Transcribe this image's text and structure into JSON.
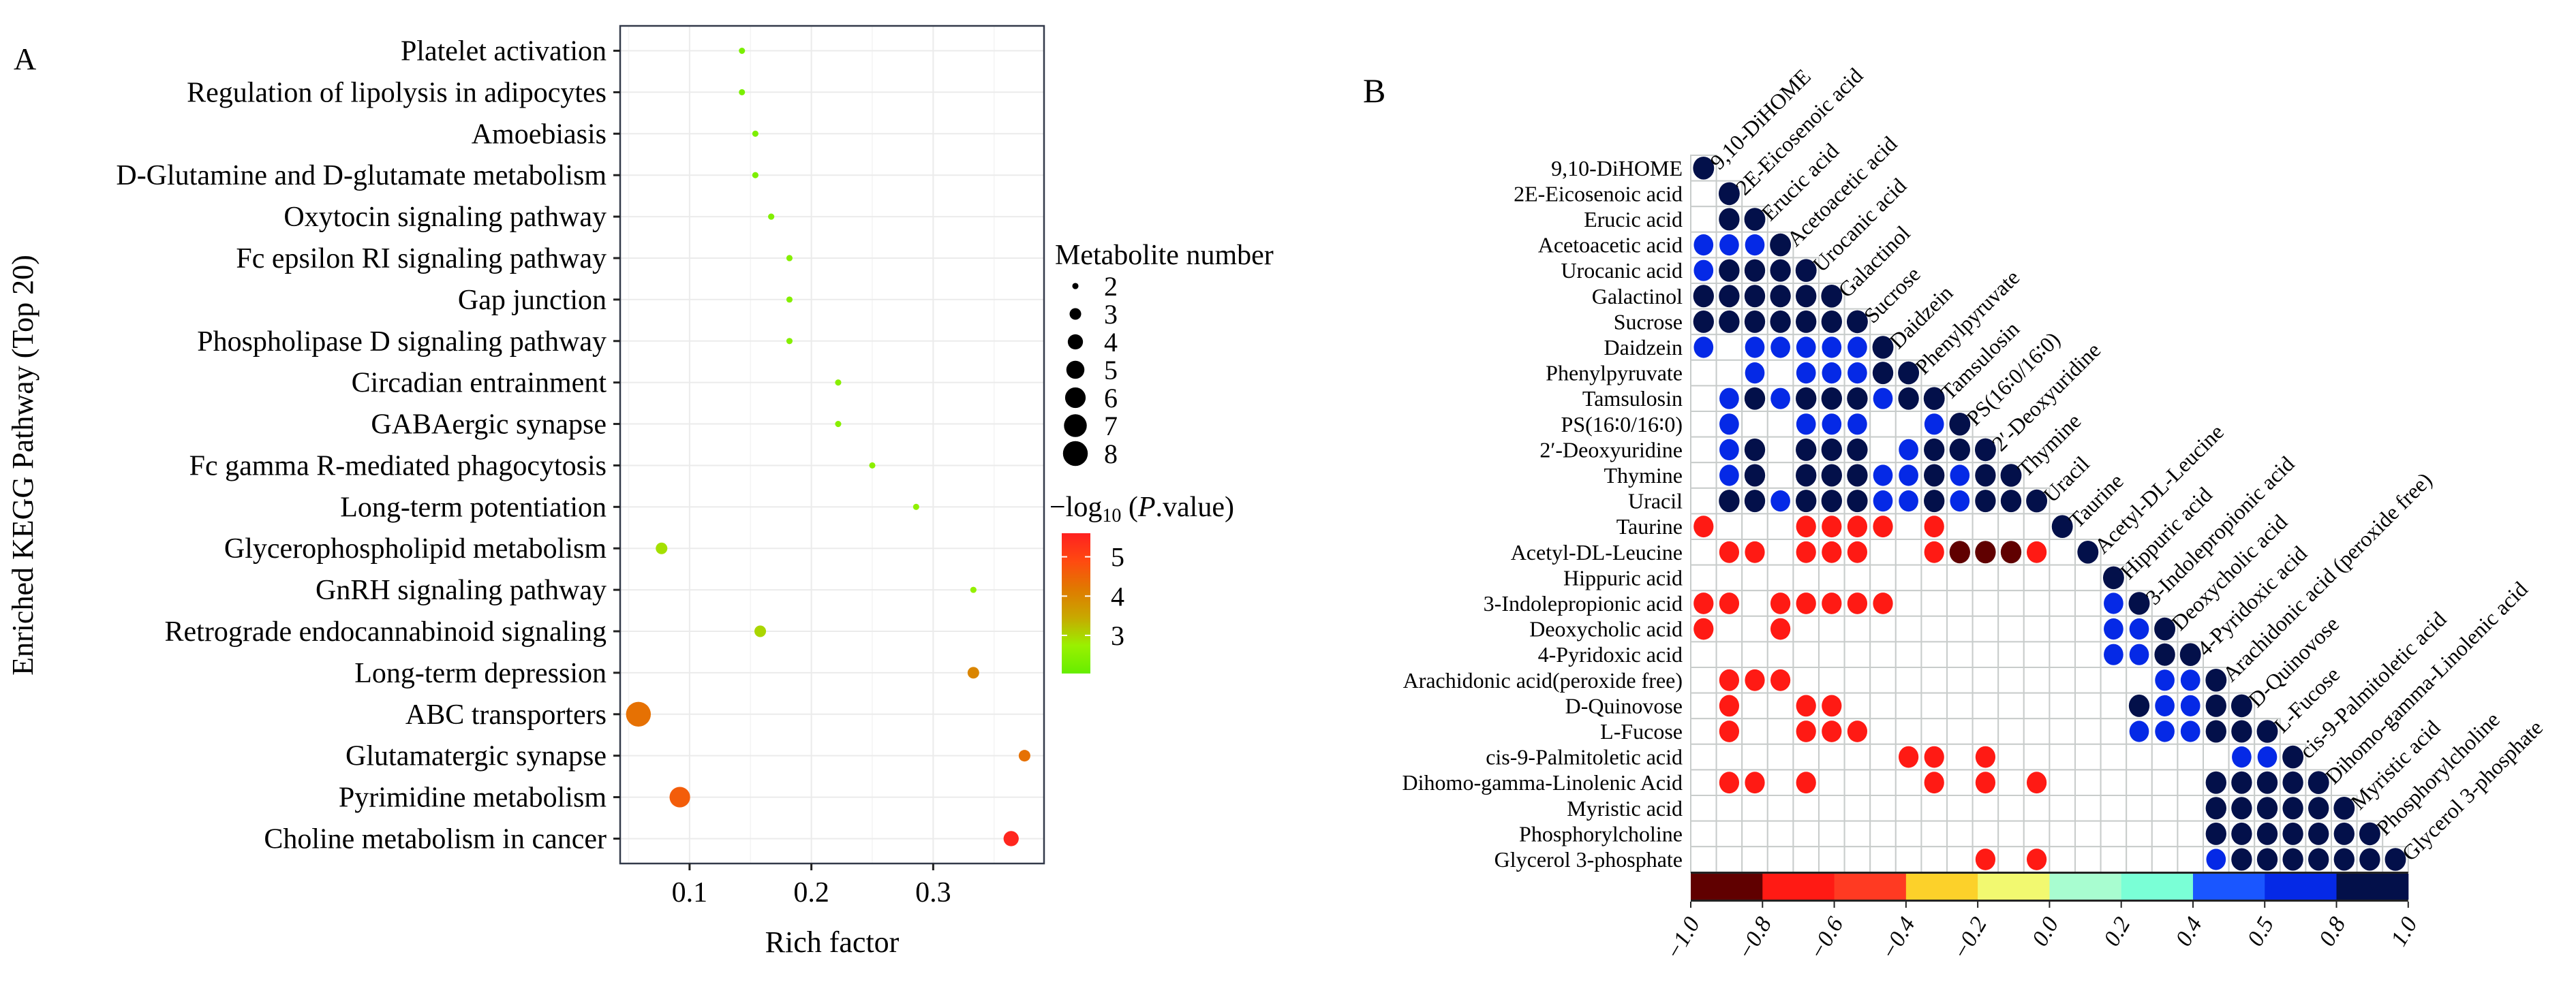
{
  "panel_labels": {
    "a": "A",
    "b": "B"
  },
  "chart_data": [
    {
      "type": "scatter",
      "title": "",
      "xlabel": "Rich factor",
      "ylabel": "Enriched KEGG Pathway (Top 20)",
      "xlim": [
        0.043,
        0.391
      ],
      "xticks": [
        0.1,
        0.2,
        0.3
      ],
      "xtick_labels": [
        "0.1",
        "0.2",
        "0.3"
      ],
      "grid": true,
      "categories": [
        "Platelet activation",
        "Regulation of lipolysis in adipocytes",
        "Amoebiasis",
        "D-Glutamine and D-glutamate metabolism",
        "Oxytocin signaling pathway",
        "Fc epsilon RI signaling pathway",
        "Gap junction",
        "Phospholipase D signaling pathway",
        "Circadian entrainment",
        "GABAergic synapse",
        "Fc gamma R-mediated phagocytosis",
        "Long-term potentiation",
        "Glycerophospholipid metabolism",
        "GnRH signaling pathway",
        "Retrograde endocannabinoid signaling",
        "Long-term depression",
        "ABC transporters",
        "Glutamatergic synapse",
        "Pyrimidine metabolism",
        "Choline metabolism in cancer"
      ],
      "rich_factor": [
        0.143,
        0.143,
        0.154,
        0.154,
        0.167,
        0.182,
        0.182,
        0.182,
        0.222,
        0.222,
        0.25,
        0.286,
        0.077,
        0.333,
        0.158,
        0.333,
        0.058,
        0.375,
        0.092,
        0.364
      ],
      "metabolite_number": [
        2,
        2,
        2,
        2,
        2,
        2,
        2,
        2,
        2,
        2,
        2,
        2,
        3,
        2,
        3,
        3,
        8,
        3,
        6,
        4
      ],
      "neg_log10_p": [
        2.3,
        2.3,
        2.35,
        2.35,
        2.4,
        2.45,
        2.45,
        2.45,
        2.5,
        2.5,
        2.55,
        2.6,
        2.9,
        2.65,
        3.0,
        4.0,
        4.3,
        4.3,
        4.6,
        5.5
      ],
      "legend_size": {
        "title": "Metabolite number",
        "values": [
          2,
          3,
          4,
          5,
          6,
          7,
          8
        ],
        "labels": [
          "2",
          "3",
          "4",
          "5",
          "6",
          "7",
          "8"
        ],
        "placement": "right"
      },
      "legend_color": {
        "title_prefix": "−log",
        "title_sub": "10",
        "title_paren_open": " (",
        "title_italic": "P",
        "title_suffix": ".value)",
        "range": [
          2.03,
          5.6
        ],
        "ticks": [
          5,
          4,
          3
        ],
        "tick_labels": [
          "5",
          "4",
          "3"
        ],
        "colors": [
          "#66EE00",
          "#9AF000",
          "#C8A800",
          "#E07A00",
          "#FF4A10",
          "#FF2020"
        ],
        "placement": "right"
      }
    },
    {
      "type": "heatmap",
      "subtype": "correlation-circles-lower-triangle",
      "row_labels": [
        "9,10-DiHOME",
        "2E-Eicosenoic acid",
        "Erucic acid",
        "Acetoacetic acid",
        "Urocanic acid",
        "Galactinol",
        "Sucrose",
        "Daidzein",
        "Phenylpyruvate",
        "Tamsulosin",
        "PS(16∶0/16∶0)",
        "2′-Deoxyuridine",
        "Thymine",
        "Uracil",
        "Taurine",
        "Acetyl-DL-Leucine",
        "Hippuric acid",
        "3-Indolepropionic acid",
        "Deoxycholic acid",
        "4-Pyridoxic acid",
        "Arachidonic acid(peroxide free)",
        "D-Quinovose",
        "L-Fucose",
        "cis-9-Palmitoletic acid",
        "Dihomo-gamma-Linolenic Acid",
        "Myristic acid",
        "Phosphorylcholine",
        "Glycerol 3-phosphate"
      ],
      "col_labels": [
        "9,10-DiHOME",
        "2E-Eicosenoic acid",
        "Erucic acid",
        "Acetoacetic acid",
        "Urocanic acid",
        "Galactinol",
        "Sucrose",
        "Daidzein",
        "Phenylpyruvate",
        "Tamsulosin",
        "PS(16∶0/16∶0)",
        "2′-Deoxyuridine",
        "Thymine",
        "Uracil",
        "Taurine",
        "Acetyl-DL-Leucine",
        "Hippuric acid",
        "3-Indolepropionic acid",
        "Deoxycholic acid",
        "4-Pyridoxic acid",
        "Arachidonic acid (peroxide free)",
        "D-Quinovose",
        "L-Fucose",
        "cis-9-Palmitoletic acid",
        "Dihomo-gamma-Linolenic acid",
        "Myristic acid",
        "Phosphorylcholine",
        "Glycerol 3-phosphate"
      ],
      "value_note": "Correlation values estimated from color bins; blank cells are non-significant",
      "cells": [
        [
          0,
          0,
          1.0
        ],
        [
          1,
          1,
          1.0
        ],
        [
          2,
          1,
          0.9
        ],
        [
          2,
          2,
          1.0
        ],
        [
          3,
          0,
          0.6
        ],
        [
          3,
          1,
          0.6
        ],
        [
          3,
          2,
          0.6
        ],
        [
          3,
          3,
          1.0
        ],
        [
          4,
          0,
          0.6
        ],
        [
          4,
          1,
          0.9
        ],
        [
          4,
          2,
          0.9
        ],
        [
          4,
          3,
          0.9
        ],
        [
          4,
          4,
          1.0
        ],
        [
          5,
          0,
          0.9
        ],
        [
          5,
          1,
          0.9
        ],
        [
          5,
          2,
          0.9
        ],
        [
          5,
          3,
          0.9
        ],
        [
          5,
          4,
          0.9
        ],
        [
          5,
          5,
          1.0
        ],
        [
          6,
          0,
          0.9
        ],
        [
          6,
          1,
          0.9
        ],
        [
          6,
          2,
          0.9
        ],
        [
          6,
          3,
          0.9
        ],
        [
          6,
          4,
          0.9
        ],
        [
          6,
          5,
          0.9
        ],
        [
          6,
          6,
          1.0
        ],
        [
          7,
          0,
          0.6
        ],
        [
          7,
          2,
          0.6
        ],
        [
          7,
          3,
          0.6
        ],
        [
          7,
          4,
          0.6
        ],
        [
          7,
          5,
          0.6
        ],
        [
          7,
          6,
          0.6
        ],
        [
          7,
          7,
          1.0
        ],
        [
          8,
          2,
          0.6
        ],
        [
          8,
          4,
          0.6
        ],
        [
          8,
          5,
          0.6
        ],
        [
          8,
          6,
          0.6
        ],
        [
          8,
          7,
          0.9
        ],
        [
          8,
          8,
          1.0
        ],
        [
          9,
          1,
          0.6
        ],
        [
          9,
          2,
          0.9
        ],
        [
          9,
          3,
          0.6
        ],
        [
          9,
          4,
          0.9
        ],
        [
          9,
          5,
          0.9
        ],
        [
          9,
          6,
          0.9
        ],
        [
          9,
          7,
          0.6
        ],
        [
          9,
          8,
          0.9
        ],
        [
          9,
          9,
          1.0
        ],
        [
          10,
          1,
          0.6
        ],
        [
          10,
          4,
          0.6
        ],
        [
          10,
          5,
          0.6
        ],
        [
          10,
          6,
          0.6
        ],
        [
          10,
          9,
          0.6
        ],
        [
          10,
          10,
          1.0
        ],
        [
          11,
          1,
          0.6
        ],
        [
          11,
          2,
          0.9
        ],
        [
          11,
          4,
          0.9
        ],
        [
          11,
          5,
          0.9
        ],
        [
          11,
          6,
          0.9
        ],
        [
          11,
          8,
          0.6
        ],
        [
          11,
          9,
          0.9
        ],
        [
          11,
          10,
          0.9
        ],
        [
          11,
          11,
          1.0
        ],
        [
          12,
          1,
          0.6
        ],
        [
          12,
          2,
          0.9
        ],
        [
          12,
          4,
          0.9
        ],
        [
          12,
          5,
          0.9
        ],
        [
          12,
          6,
          0.9
        ],
        [
          12,
          7,
          0.6
        ],
        [
          12,
          8,
          0.6
        ],
        [
          12,
          9,
          0.9
        ],
        [
          12,
          10,
          0.6
        ],
        [
          12,
          11,
          0.9
        ],
        [
          12,
          12,
          1.0
        ],
        [
          13,
          1,
          0.9
        ],
        [
          13,
          2,
          0.9
        ],
        [
          13,
          3,
          0.6
        ],
        [
          13,
          4,
          0.9
        ],
        [
          13,
          5,
          0.9
        ],
        [
          13,
          6,
          0.9
        ],
        [
          13,
          7,
          0.6
        ],
        [
          13,
          8,
          0.6
        ],
        [
          13,
          9,
          0.9
        ],
        [
          13,
          10,
          0.6
        ],
        [
          13,
          11,
          0.9
        ],
        [
          13,
          12,
          0.9
        ],
        [
          13,
          13,
          1.0
        ],
        [
          14,
          0,
          -0.7
        ],
        [
          14,
          4,
          -0.7
        ],
        [
          14,
          5,
          -0.7
        ],
        [
          14,
          6,
          -0.7
        ],
        [
          14,
          7,
          -0.7
        ],
        [
          14,
          9,
          -0.7
        ],
        [
          14,
          14,
          1.0
        ],
        [
          15,
          1,
          -0.7
        ],
        [
          15,
          2,
          -0.7
        ],
        [
          15,
          4,
          -0.7
        ],
        [
          15,
          5,
          -0.7
        ],
        [
          15,
          6,
          -0.7
        ],
        [
          15,
          9,
          -0.7
        ],
        [
          15,
          10,
          -0.9
        ],
        [
          15,
          11,
          -0.9
        ],
        [
          15,
          12,
          -0.9
        ],
        [
          15,
          13,
          -0.7
        ],
        [
          15,
          15,
          1.0
        ],
        [
          16,
          16,
          1.0
        ],
        [
          17,
          0,
          -0.7
        ],
        [
          17,
          1,
          -0.7
        ],
        [
          17,
          3,
          -0.7
        ],
        [
          17,
          4,
          -0.7
        ],
        [
          17,
          5,
          -0.7
        ],
        [
          17,
          6,
          -0.7
        ],
        [
          17,
          7,
          -0.7
        ],
        [
          17,
          16,
          0.6
        ],
        [
          17,
          17,
          1.0
        ],
        [
          18,
          0,
          -0.7
        ],
        [
          18,
          3,
          -0.7
        ],
        [
          18,
          16,
          0.6
        ],
        [
          18,
          17,
          0.6
        ],
        [
          18,
          18,
          1.0
        ],
        [
          19,
          16,
          0.6
        ],
        [
          19,
          17,
          0.6
        ],
        [
          19,
          18,
          0.9
        ],
        [
          19,
          19,
          1.0
        ],
        [
          20,
          1,
          -0.7
        ],
        [
          20,
          2,
          -0.7
        ],
        [
          20,
          3,
          -0.7
        ],
        [
          20,
          18,
          0.6
        ],
        [
          20,
          19,
          0.6
        ],
        [
          20,
          20,
          1.0
        ],
        [
          21,
          1,
          -0.7
        ],
        [
          21,
          4,
          -0.7
        ],
        [
          21,
          5,
          -0.7
        ],
        [
          21,
          17,
          0.9
        ],
        [
          21,
          18,
          0.6
        ],
        [
          21,
          19,
          0.6
        ],
        [
          21,
          20,
          0.9
        ],
        [
          21,
          21,
          1.0
        ],
        [
          22,
          1,
          -0.7
        ],
        [
          22,
          4,
          -0.7
        ],
        [
          22,
          5,
          -0.7
        ],
        [
          22,
          6,
          -0.7
        ],
        [
          22,
          17,
          0.6
        ],
        [
          22,
          18,
          0.6
        ],
        [
          22,
          19,
          0.6
        ],
        [
          22,
          20,
          0.9
        ],
        [
          22,
          21,
          0.9
        ],
        [
          22,
          22,
          1.0
        ],
        [
          23,
          8,
          -0.7
        ],
        [
          23,
          9,
          -0.7
        ],
        [
          23,
          11,
          -0.7
        ],
        [
          23,
          21,
          0.6
        ],
        [
          23,
          22,
          0.6
        ],
        [
          23,
          23,
          1.0
        ],
        [
          24,
          1,
          -0.7
        ],
        [
          24,
          2,
          -0.7
        ],
        [
          24,
          4,
          -0.7
        ],
        [
          24,
          9,
          -0.7
        ],
        [
          24,
          11,
          -0.7
        ],
        [
          24,
          13,
          -0.7
        ],
        [
          24,
          20,
          0.9
        ],
        [
          24,
          21,
          0.9
        ],
        [
          24,
          22,
          0.9
        ],
        [
          24,
          23,
          0.9
        ],
        [
          24,
          24,
          1.0
        ],
        [
          25,
          20,
          0.9
        ],
        [
          25,
          21,
          0.9
        ],
        [
          25,
          22,
          0.9
        ],
        [
          25,
          23,
          0.9
        ],
        [
          25,
          24,
          0.9
        ],
        [
          25,
          25,
          1.0
        ],
        [
          26,
          20,
          0.9
        ],
        [
          26,
          21,
          0.9
        ],
        [
          26,
          22,
          0.9
        ],
        [
          26,
          23,
          0.9
        ],
        [
          26,
          24,
          0.9
        ],
        [
          26,
          25,
          0.9
        ],
        [
          26,
          26,
          1.0
        ],
        [
          27,
          11,
          -0.7
        ],
        [
          27,
          13,
          -0.7
        ],
        [
          27,
          20,
          0.6
        ],
        [
          27,
          21,
          0.9
        ],
        [
          27,
          22,
          0.9
        ],
        [
          27,
          23,
          0.9
        ],
        [
          27,
          24,
          0.9
        ],
        [
          27,
          25,
          0.9
        ],
        [
          27,
          26,
          0.9
        ],
        [
          27,
          27,
          1.0
        ]
      ],
      "colorbar": {
        "range": [
          -1.0,
          1.0
        ],
        "bins": 10,
        "colors": [
          "#600000",
          "#FF1A14",
          "#FF3A22",
          "#FCD12A",
          "#F2F970",
          "#A8FDD0",
          "#7AFFD6",
          "#1A56FF",
          "#0529E6",
          "#03104A"
        ],
        "tick_labels": [
          "−1.0",
          "−0.8",
          "−0.6",
          "−0.4",
          "−0.2",
          "0.0",
          "0.2",
          "0.4",
          "0.5",
          "0.8",
          "1.0"
        ],
        "placement": "bottom"
      }
    }
  ]
}
